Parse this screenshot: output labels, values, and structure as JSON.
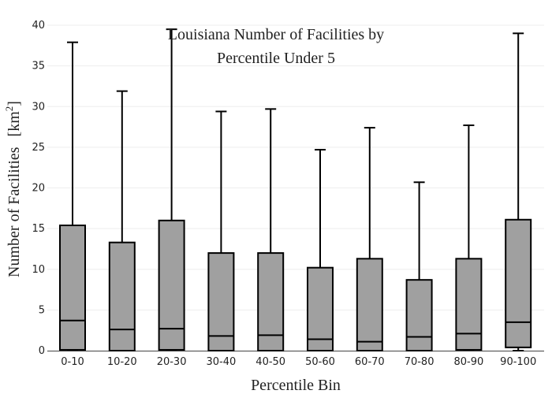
{
  "chart_data": {
    "type": "box",
    "title": "Louisiana Number of Facilities by Percentile Under 5",
    "title_lines": [
      "Louisiana Number of Facilities by",
      "Percentile Under 5"
    ],
    "xlabel": "Percentile Bin",
    "ylabel": "Number of Facilities",
    "ylabel_unit_base": "[km",
    "ylabel_unit_exp": "2",
    "ylabel_unit_close": "]",
    "ylim": [
      0,
      40
    ],
    "yticks": [
      0,
      5,
      10,
      15,
      20,
      25,
      30,
      35,
      40
    ],
    "grid": true,
    "box_color": "#a0a0a0",
    "line_color": "#000000",
    "categories": [
      "0-10",
      "10-20",
      "20-30",
      "30-40",
      "40-50",
      "50-60",
      "60-70",
      "70-80",
      "80-90",
      "90-100"
    ],
    "boxes": [
      {
        "min": 0.1,
        "q1": 0.1,
        "median": 3.7,
        "q3": 15.4,
        "max": 37.9
      },
      {
        "min": 0.0,
        "q1": 0.0,
        "median": 2.6,
        "q3": 13.3,
        "max": 31.9
      },
      {
        "min": 0.1,
        "q1": 0.1,
        "median": 2.7,
        "q3": 16.0,
        "max": 39.5
      },
      {
        "min": 0.0,
        "q1": 0.0,
        "median": 1.8,
        "q3": 12.0,
        "max": 29.4
      },
      {
        "min": 0.0,
        "q1": 0.0,
        "median": 1.9,
        "q3": 12.0,
        "max": 29.7
      },
      {
        "min": 0.0,
        "q1": 0.0,
        "median": 1.4,
        "q3": 10.2,
        "max": 24.7
      },
      {
        "min": 0.0,
        "q1": 0.0,
        "median": 1.1,
        "q3": 11.3,
        "max": 27.4
      },
      {
        "min": 0.0,
        "q1": 0.0,
        "median": 1.7,
        "q3": 8.7,
        "max": 20.7
      },
      {
        "min": 0.1,
        "q1": 0.1,
        "median": 2.1,
        "q3": 11.3,
        "max": 27.7
      },
      {
        "min": 0.0,
        "q1": 0.4,
        "median": 3.5,
        "q3": 16.1,
        "max": 39.0
      }
    ]
  }
}
